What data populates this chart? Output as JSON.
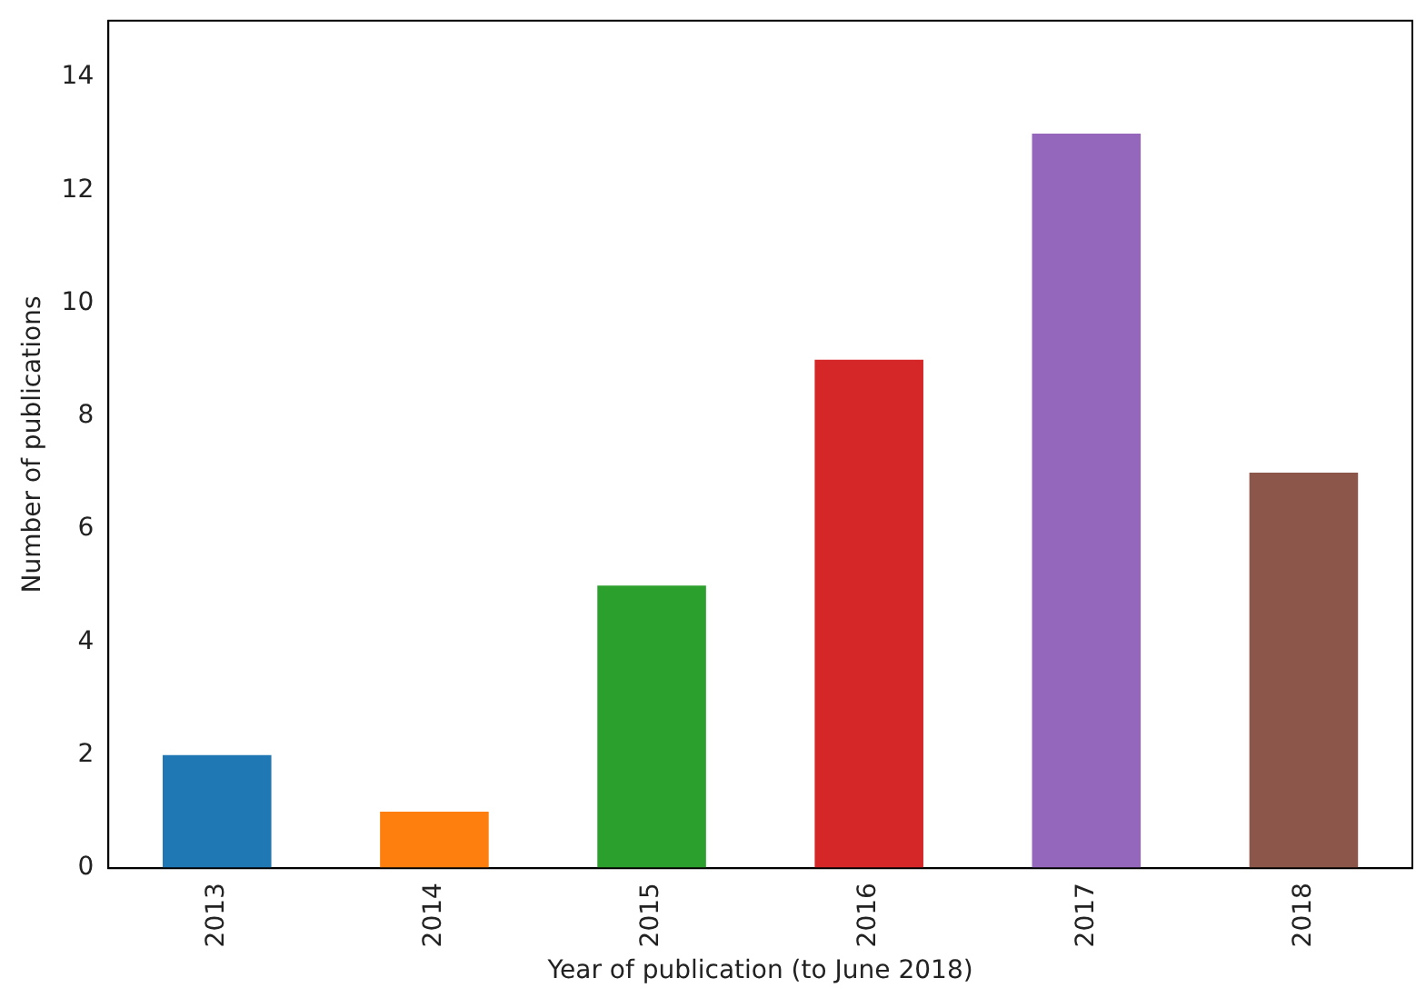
{
  "chart_data": {
    "type": "bar",
    "xlabel": "Year of publication (to June 2018)",
    "ylabel": "Number of publications",
    "categories": [
      "2013",
      "2014",
      "2015",
      "2016",
      "2017",
      "2018"
    ],
    "values": [
      2,
      1,
      5,
      9,
      13,
      7
    ],
    "colors": [
      "#1f77b4",
      "#ff7f0e",
      "#2ca02c",
      "#d62728",
      "#9467bd",
      "#8c564b"
    ],
    "ylim": [
      0,
      15
    ],
    "yticks": [
      0,
      2,
      4,
      6,
      8,
      10,
      12,
      14
    ],
    "grid": false,
    "legend": false
  }
}
